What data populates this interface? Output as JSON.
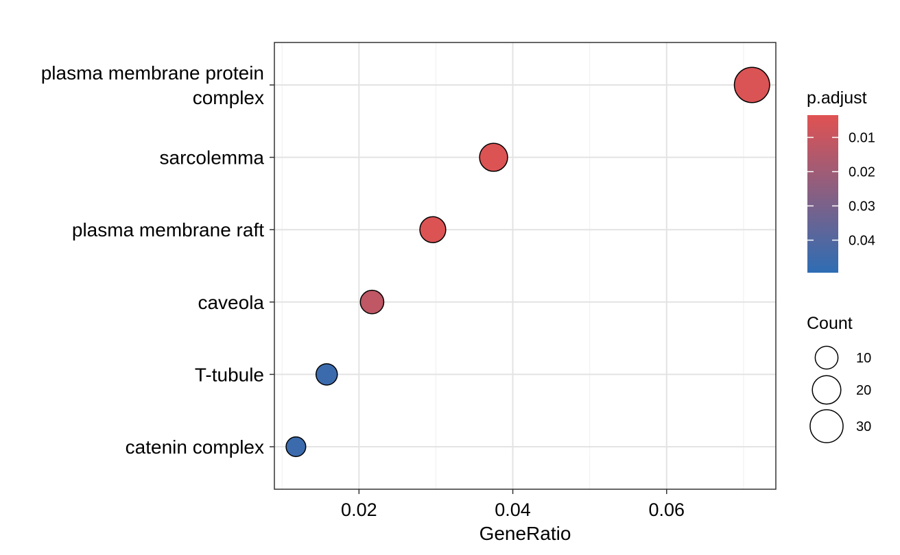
{
  "chart_data": {
    "type": "scatter",
    "xlabel": "GeneRatio",
    "ylabel": "",
    "xlim": [
      0.009,
      0.0742
    ],
    "x_ticks": [
      0.02,
      0.04,
      0.06
    ],
    "x_tick_labels": [
      "0.02",
      "0.04",
      "0.06"
    ],
    "grid": true,
    "categories": [
      "plasma membrane protein complex",
      "sarcolemma",
      "plasma membrane raft",
      "caveola",
      "T-tubule",
      "catenin complex"
    ],
    "category_label_lines": [
      [
        "plasma membrane protein",
        "complex"
      ],
      [
        "sarcolemma"
      ],
      [
        "plasma membrane raft"
      ],
      [
        "caveola"
      ],
      [
        "T-tubule"
      ],
      [
        "catenin complex"
      ]
    ],
    "points": [
      {
        "term": "plasma membrane protein complex",
        "gene_ratio": 0.0711,
        "count": 36,
        "p_adjust": 0.005
      },
      {
        "term": "sarcolemma",
        "gene_ratio": 0.0375,
        "count": 19,
        "p_adjust": 0.0045
      },
      {
        "term": "plasma membrane raft",
        "gene_ratio": 0.0296,
        "count": 15,
        "p_adjust": 0.0045
      },
      {
        "term": "caveola",
        "gene_ratio": 0.0217,
        "count": 11,
        "p_adjust": 0.012
      },
      {
        "term": "T-tubule",
        "gene_ratio": 0.0158,
        "count": 8,
        "p_adjust": 0.046
      },
      {
        "term": "catenin complex",
        "gene_ratio": 0.0118,
        "count": 6,
        "p_adjust": 0.046
      }
    ],
    "color_legend": {
      "title": "p.adjust",
      "range": [
        0.0035,
        0.0495
      ],
      "low_color": "#e05252",
      "high_color": "#2e6db4",
      "breaks": [
        0.01,
        0.02,
        0.03,
        0.04
      ],
      "break_labels": [
        "0.01",
        "0.02",
        "0.03",
        "0.04"
      ]
    },
    "size_legend": {
      "title": "Count",
      "breaks": [
        10,
        20,
        30
      ],
      "break_labels": [
        "10",
        "20",
        "30"
      ]
    }
  }
}
